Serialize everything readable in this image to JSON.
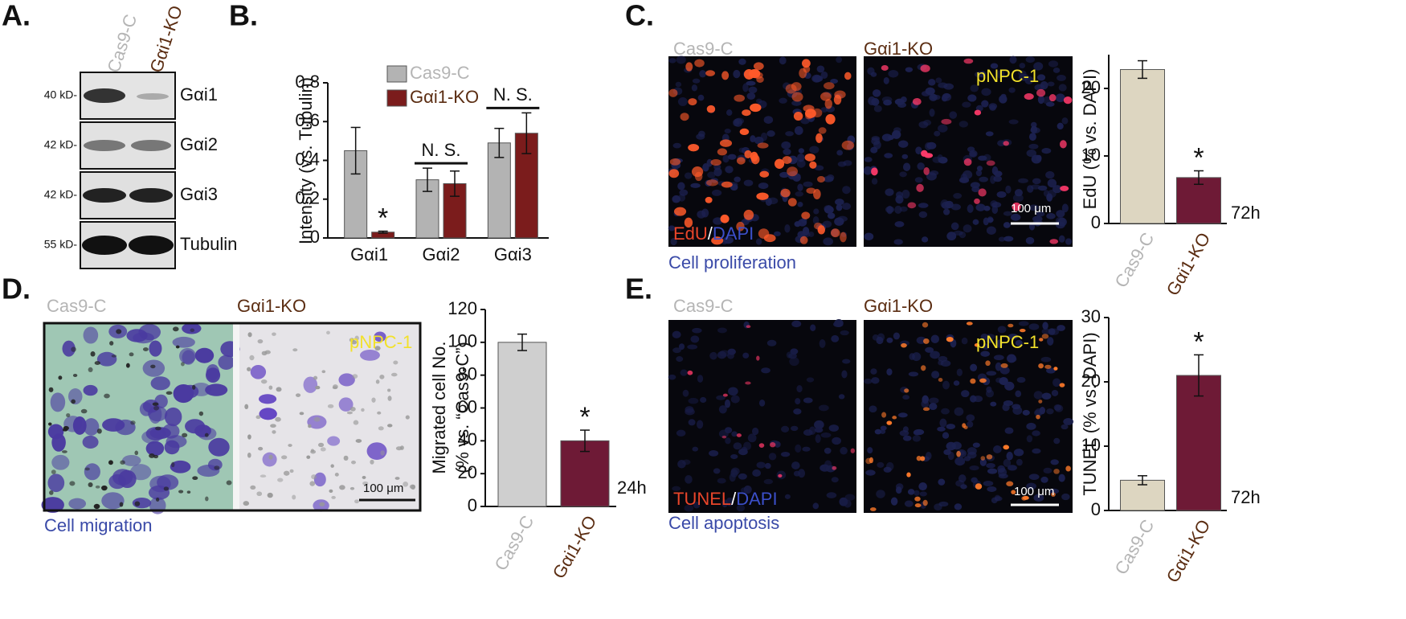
{
  "panels": {
    "A": {
      "label": "A.",
      "columns": [
        "Cas9-C",
        "Gαi1-KO"
      ],
      "markers": [
        "40 kD-",
        "42 kD-",
        "42 kD-",
        "55 kD-"
      ],
      "proteins": [
        "Gαi1",
        "Gαi2",
        "Gαi3",
        "Tubulin"
      ]
    },
    "B": {
      "label": "B."
    },
    "C": {
      "label": "C.",
      "columns": [
        "Cas9-C",
        "Gαi1-KO"
      ],
      "cell_line": "pNPC-1",
      "stain": [
        "EdU",
        "/",
        "DAPI"
      ],
      "scale": "100 μm",
      "caption": "Cell proliferation"
    },
    "D": {
      "label": "D.",
      "columns": [
        "Cas9-C",
        "Gαi1-KO"
      ],
      "cell_line": "pNPC-1",
      "scale": "100 μm",
      "caption": "Cell migration"
    },
    "E": {
      "label": "E.",
      "columns": [
        "Cas9-C",
        "Gαi1-KO"
      ],
      "cell_line": "pNPC-1",
      "stain": [
        "TUNEL",
        "/",
        "DAPI"
      ],
      "scale": "100 μm",
      "caption": "Cell apoptosis"
    }
  },
  "chart_data": [
    {
      "type": "bar",
      "ylabel": "Intensity (vs. Tubulin)",
      "categories": [
        "Gαi1",
        "Gαi2",
        "Gαi3"
      ],
      "series": [
        {
          "name": "Cas9-C",
          "color": "#b3b3b3",
          "values": [
            0.45,
            0.3,
            0.49
          ],
          "errors": [
            0.12,
            0.06,
            0.075
          ]
        },
        {
          "name": "Gαi1-KO",
          "color": "#7b1c1c",
          "values": [
            0.03,
            0.28,
            0.54
          ],
          "errors": [
            0.005,
            0.065,
            0.105
          ]
        }
      ],
      "ylim": [
        0,
        0.8
      ],
      "yticks": [
        0,
        0.2,
        0.4,
        0.6,
        0.8
      ],
      "annotations": [
        "*",
        "N. S.",
        "N. S."
      ]
    },
    {
      "type": "bar",
      "ylabel": "EdU (% vs. DAPI)",
      "categories": [
        "Cas9-C",
        "Gαi1-KO"
      ],
      "values": [
        22.8,
        6.8
      ],
      "errors": [
        1.3,
        1.0
      ],
      "colors": [
        "#ddd6c1",
        "#6e1a36"
      ],
      "ylim": [
        0,
        25
      ],
      "yticks": [
        0,
        10,
        20
      ],
      "annotations": [
        "*",
        "72h"
      ]
    },
    {
      "type": "bar",
      "ylabel": [
        "Migrated cell No.",
        "(% vs. “Cas9-C”)"
      ],
      "categories": [
        "Cas9-C",
        "Gαi1-KO"
      ],
      "values": [
        100,
        40
      ],
      "errors": [
        5,
        6.5
      ],
      "colors": [
        "#cfcfcf",
        "#6e1a36"
      ],
      "ylim": [
        0,
        120
      ],
      "yticks": [
        0,
        20,
        40,
        60,
        80,
        100,
        120
      ],
      "annotations": [
        "*",
        "24h"
      ]
    },
    {
      "type": "bar",
      "ylabel": "TUNEL (% vs. DAPI)",
      "categories": [
        "Cas9-C",
        "Gαi1-KO"
      ],
      "values": [
        4.7,
        21
      ],
      "errors": [
        0.7,
        3.2
      ],
      "colors": [
        "#ddd6c1",
        "#6e1a36"
      ],
      "ylim": [
        0,
        30
      ],
      "yticks": [
        0,
        10,
        20,
        30
      ],
      "annotations": [
        "*",
        "72h"
      ]
    }
  ]
}
